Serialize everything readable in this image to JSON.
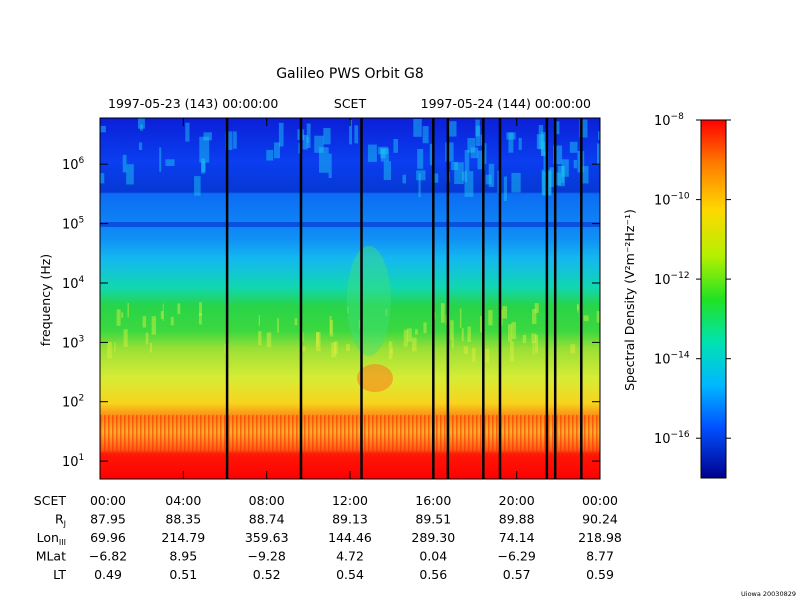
{
  "chart_data": {
    "type": "heatmap",
    "title": "Galileo PWS Orbit G8",
    "top_axis": {
      "start_label": "1997-05-23 (143) 00:00:00",
      "center_label": "SCET",
      "end_label": "1997-05-24 (144) 00:00:00"
    },
    "x": {
      "unit": "hours",
      "range": [
        0,
        24
      ],
      "tick_values": [
        0,
        4,
        8,
        12,
        16,
        20,
        24
      ],
      "tick_labels": [
        "00:00",
        "04:00",
        "08:00",
        "12:00",
        "16:00",
        "20:00",
        "00:00"
      ]
    },
    "y": {
      "label": "frequency (Hz)",
      "scale": "log",
      "range": [
        5,
        6000000
      ],
      "tick_labels": [
        {
          "base": "10",
          "exp": "1"
        },
        {
          "base": "10",
          "exp": "2"
        },
        {
          "base": "10",
          "exp": "3"
        },
        {
          "base": "10",
          "exp": "4"
        },
        {
          "base": "10",
          "exp": "5"
        },
        {
          "base": "10",
          "exp": "6"
        }
      ]
    },
    "colorbar": {
      "label": "Spectral Density (V²m⁻²Hz⁻¹)",
      "scale": "log",
      "range": [
        1e-17,
        1e-08
      ],
      "tick_labels": [
        {
          "base": "10",
          "exp": "−8"
        },
        {
          "base": "10",
          "exp": "−10"
        },
        {
          "base": "10",
          "exp": "−12"
        },
        {
          "base": "10",
          "exp": "−14"
        },
        {
          "base": "10",
          "exp": "−16"
        }
      ]
    },
    "data_gaps_hours": [
      6.1,
      9.65,
      12.55,
      16.0,
      16.7,
      18.4,
      19.2,
      21.45,
      21.85,
      23.1
    ],
    "ephemeris": {
      "rows": [
        {
          "label": "SCET",
          "values": [
            "00:00",
            "04:00",
            "08:00",
            "12:00",
            "16:00",
            "20:00",
            "00:00"
          ]
        },
        {
          "label": "R_J",
          "values": [
            "87.95",
            "88.35",
            "88.74",
            "89.13",
            "89.51",
            "89.88",
            "90.24"
          ]
        },
        {
          "label": "Lon_III",
          "values": [
            "69.96",
            "214.79",
            "359.63",
            "144.46",
            "289.30",
            "74.14",
            "218.98"
          ]
        },
        {
          "label": "MLat",
          "values": [
            "−6.82",
            "8.95",
            "−9.28",
            "4.72",
            "0.04",
            "−6.29",
            "8.77"
          ]
        },
        {
          "label": "LT",
          "values": [
            "0.49",
            "0.51",
            "0.52",
            "0.54",
            "0.56",
            "0.57",
            "0.59"
          ]
        }
      ]
    },
    "footer_stamp": "Uiowa 20030829"
  }
}
